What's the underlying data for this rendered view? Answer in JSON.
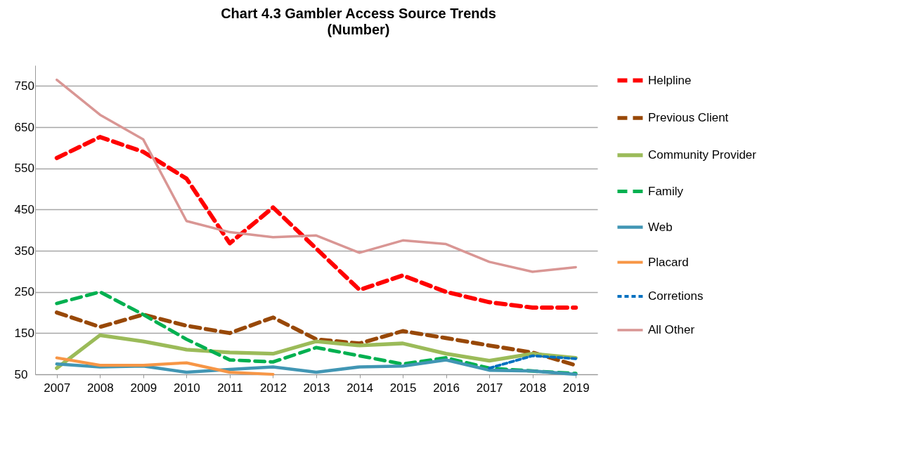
{
  "chart_data": {
    "type": "line",
    "title": "Chart 4.3 Gambler Access Source Trends",
    "subtitle": "(Number)",
    "categories": [
      "2007",
      "2008",
      "2009",
      "2010",
      "2011",
      "2012",
      "2013",
      "2014",
      "2015",
      "2016",
      "2017",
      "2018",
      "2019"
    ],
    "ylim": [
      50,
      800
    ],
    "yticks": [
      50,
      150,
      250,
      350,
      450,
      550,
      650,
      750
    ],
    "grid": "y",
    "legend": "right",
    "marker": "none",
    "series": [
      {
        "name": "Helpline",
        "color": "#ff0000",
        "line_style": "dashed",
        "values": [
          575,
          626,
          590,
          525,
          368,
          455,
          355,
          255,
          290,
          250,
          225,
          212,
          212
        ]
      },
      {
        "name": "Previous Client",
        "color": "#984807",
        "line_style": "dashed",
        "values": [
          200,
          165,
          195,
          168,
          150,
          188,
          135,
          125,
          155,
          138,
          120,
          103,
          72
        ]
      },
      {
        "name": "Community Provider",
        "color": "#9bbb59",
        "line_style": "solid",
        "values": [
          65,
          145,
          130,
          110,
          103,
          100,
          130,
          120,
          125,
          100,
          83,
          100,
          90
        ]
      },
      {
        "name": "Family",
        "color": "#00b050",
        "line_style": "dashed",
        "values": [
          222,
          250,
          195,
          135,
          85,
          80,
          115,
          95,
          75,
          90,
          65,
          58,
          52
        ]
      },
      {
        "name": "Web",
        "color": "#4196b4",
        "line_style": "solid",
        "values": [
          75,
          68,
          70,
          55,
          62,
          68,
          55,
          68,
          70,
          85,
          60,
          58,
          50
        ]
      },
      {
        "name": "Placard",
        "color": "#f79646",
        "line_style": "solid",
        "values": [
          90,
          72,
          72,
          78,
          55,
          50,
          null,
          null,
          null,
          null,
          null,
          null,
          null
        ]
      },
      {
        "name": "Corretions",
        "color": "#0070c0",
        "line_style": "dotted",
        "values": [
          null,
          null,
          null,
          null,
          null,
          null,
          null,
          null,
          null,
          null,
          65,
          95,
          88
        ]
      },
      {
        "name": "All Other",
        "color": "#d99694",
        "line_style": "solid",
        "values": [
          765,
          680,
          620,
          422,
          395,
          383,
          387,
          345,
          375,
          366,
          323,
          299,
          310
        ]
      }
    ]
  }
}
